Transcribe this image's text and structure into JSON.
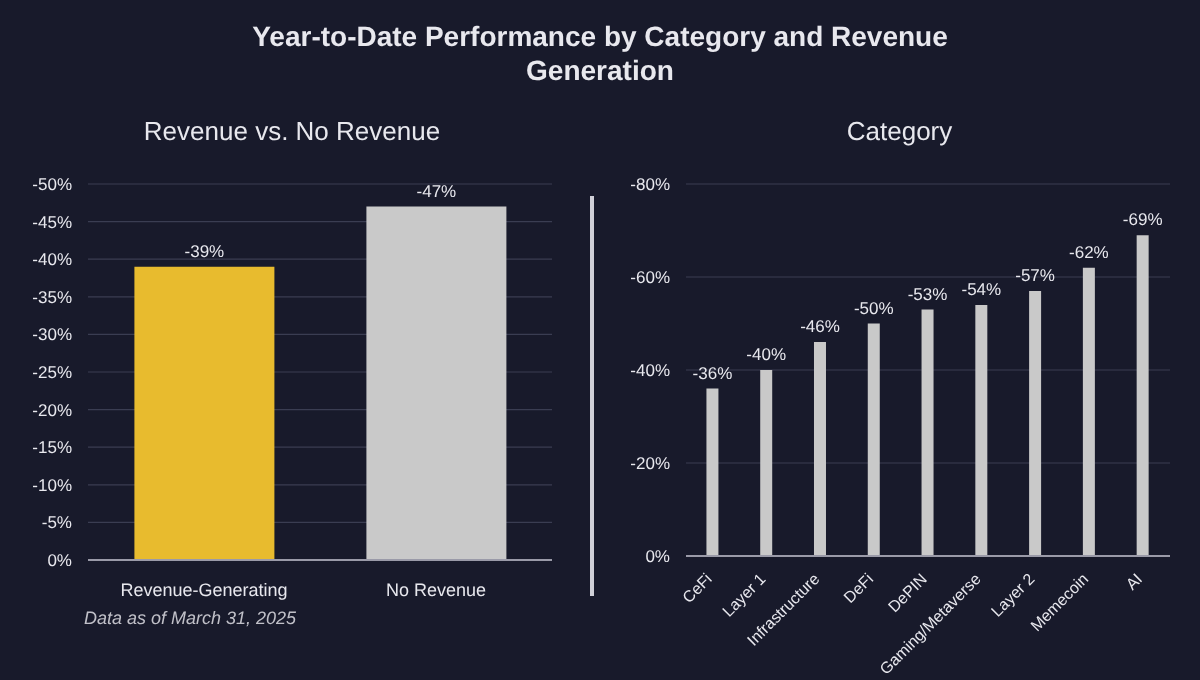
{
  "chart_data": [
    {
      "type": "bar",
      "title": "Year-to-Date Performance by Category and Revenue Generation",
      "subtitle": "Revenue vs. No Revenue",
      "categories": [
        "Revenue-Generating",
        "No Revenue"
      ],
      "values": [
        -39,
        -47
      ],
      "colors": [
        "#e8bb2e",
        "#c9c9c9"
      ],
      "value_labels": [
        "-39%",
        "-47%"
      ],
      "ylim": [
        0,
        -50
      ],
      "yticks": [
        {
          "value": 0,
          "label": "0%"
        },
        {
          "value": -5,
          "label": "-5%"
        },
        {
          "value": -10,
          "label": "-10%"
        },
        {
          "value": -15,
          "label": "-15%"
        },
        {
          "value": -20,
          "label": "-20%"
        },
        {
          "value": -25,
          "label": "-25%"
        },
        {
          "value": -30,
          "label": "-30%"
        },
        {
          "value": -35,
          "label": "-35%"
        },
        {
          "value": -40,
          "label": "-40%"
        },
        {
          "value": -45,
          "label": "-45%"
        },
        {
          "value": -50,
          "label": "-50%"
        }
      ],
      "grid": "y",
      "annotations": [
        "Data as of March 31, 2025"
      ]
    },
    {
      "type": "bar",
      "title": "Category",
      "categories": [
        "CeFi",
        "Layer 1",
        "Infrastructure",
        "DeFi",
        "DePIN",
        "Gaming/Metaverse",
        "Layer 2",
        "Memecoin",
        "AI"
      ],
      "values": [
        -36,
        -40,
        -46,
        -50,
        -53,
        -54,
        -57,
        -62,
        -69
      ],
      "color": "#c9c9c9",
      "value_labels": [
        "-36%",
        "-40%",
        "-46%",
        "-50%",
        "-53%",
        "-54%",
        "-57%",
        "-62%",
        "-69%"
      ],
      "ylim": [
        0,
        -80
      ],
      "yticks": [
        {
          "value": 0,
          "label": "0%"
        },
        {
          "value": -20,
          "label": "-20%"
        },
        {
          "value": -40,
          "label": "-40%"
        },
        {
          "value": -60,
          "label": "-60%"
        },
        {
          "value": -80,
          "label": "-80%"
        }
      ],
      "grid": "y"
    }
  ]
}
